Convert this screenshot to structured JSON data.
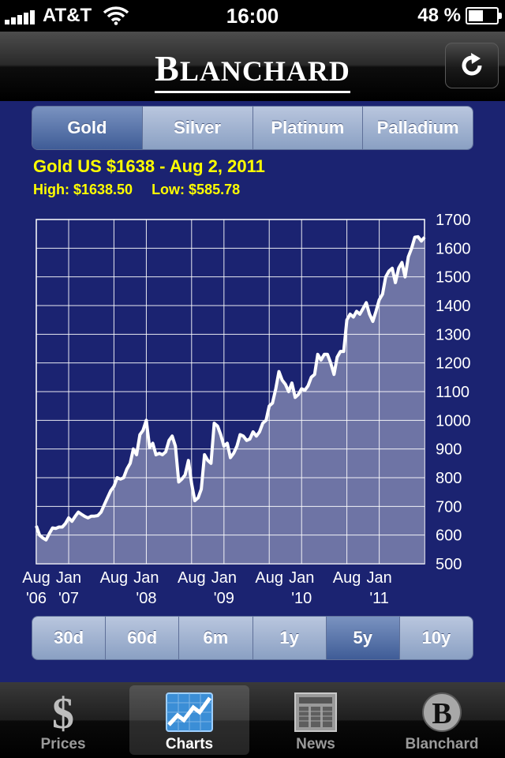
{
  "status_bar": {
    "carrier": "AT&T",
    "time": "16:00",
    "battery": "48 %",
    "battery_level": 0.48
  },
  "header": {
    "brand_initial": "B",
    "brand_rest": "LANCHARD"
  },
  "metal_tabs": [
    "Gold",
    "Silver",
    "Platinum",
    "Palladium"
  ],
  "selected_metal": "Gold",
  "quote": {
    "headline": "Gold US $1638 - Aug 2, 2011",
    "high": "High: $1638.50",
    "low": "Low: $585.78"
  },
  "range_tabs": [
    "30d",
    "60d",
    "6m",
    "1y",
    "5y",
    "10y"
  ],
  "selected_range": "5y",
  "tabbar": [
    {
      "label": "Prices",
      "icon": "dollar-icon"
    },
    {
      "label": "Charts",
      "icon": "chart-icon"
    },
    {
      "label": "News",
      "icon": "newspaper-icon"
    },
    {
      "label": "Blanchard",
      "icon": "blanchard-b-icon"
    }
  ],
  "selected_tab": "Charts",
  "colors": {
    "background": "#1b2371",
    "accent_text": "#ffff00",
    "area_fill": "#7d82ae",
    "line": "#ffffff"
  },
  "chart_data": {
    "type": "area",
    "title": "",
    "xlabel": "",
    "ylabel": "",
    "ylim": [
      500,
      1700
    ],
    "yticks": [
      500,
      600,
      700,
      800,
      900,
      1000,
      1100,
      1200,
      1300,
      1400,
      1500,
      1600,
      1700
    ],
    "y_axis_side": "right",
    "grid": true,
    "x_ticks": [
      {
        "x": 2006.583,
        "line1": "Aug",
        "line2": "'06"
      },
      {
        "x": 2007.0,
        "line1": "Jan",
        "line2": "'07"
      },
      {
        "x": 2007.583,
        "line1": "Aug",
        "line2": ""
      },
      {
        "x": 2008.0,
        "line1": "Jan",
        "line2": "'08"
      },
      {
        "x": 2008.583,
        "line1": "Aug",
        "line2": ""
      },
      {
        "x": 2009.0,
        "line1": "Jan",
        "line2": "'09"
      },
      {
        "x": 2009.583,
        "line1": "Aug",
        "line2": ""
      },
      {
        "x": 2010.0,
        "line1": "Jan",
        "line2": "'10"
      },
      {
        "x": 2010.583,
        "line1": "Aug",
        "line2": ""
      },
      {
        "x": 2011.0,
        "line1": "Jan",
        "line2": "'11"
      }
    ],
    "xlim": [
      2006.583,
      2011.583
    ],
    "series": [
      {
        "x": [
          2006.583,
          2006.625,
          2006.667,
          2006.708,
          2006.75,
          2006.792,
          2006.833,
          2006.875,
          2006.917,
          2006.958,
          2007.0,
          2007.042,
          2007.083,
          2007.125,
          2007.167,
          2007.208,
          2007.25,
          2007.292,
          2007.333,
          2007.375,
          2007.417,
          2007.458,
          2007.5,
          2007.542,
          2007.583,
          2007.625,
          2007.667,
          2007.708,
          2007.75,
          2007.792,
          2007.833,
          2007.875,
          2007.917,
          2007.958,
          2008.0,
          2008.042,
          2008.083,
          2008.125,
          2008.167,
          2008.208,
          2008.25,
          2008.292,
          2008.333,
          2008.375,
          2008.417,
          2008.458,
          2008.5,
          2008.542,
          2008.583,
          2008.625,
          2008.667,
          2008.708,
          2008.75,
          2008.792,
          2008.833,
          2008.875,
          2008.917,
          2008.958,
          2009.0,
          2009.042,
          2009.083,
          2009.125,
          2009.167,
          2009.208,
          2009.25,
          2009.292,
          2009.333,
          2009.375,
          2009.417,
          2009.458,
          2009.5,
          2009.542,
          2009.583,
          2009.625,
          2009.667,
          2009.708,
          2009.75,
          2009.792,
          2009.833,
          2009.875,
          2009.917,
          2009.958,
          2010.0,
          2010.042,
          2010.083,
          2010.125,
          2010.167,
          2010.208,
          2010.25,
          2010.292,
          2010.333,
          2010.375,
          2010.417,
          2010.458,
          2010.5,
          2010.542,
          2010.583,
          2010.625,
          2010.667,
          2010.708,
          2010.75,
          2010.792,
          2010.833,
          2010.875,
          2010.917,
          2010.958,
          2011.0,
          2011.042,
          2011.083,
          2011.125,
          2011.167,
          2011.208,
          2011.25,
          2011.292,
          2011.333,
          2011.375,
          2011.417,
          2011.458,
          2011.5,
          2011.542,
          2011.583
        ],
        "values": [
          632,
          600,
          590,
          583,
          605,
          625,
          623,
          628,
          628,
          640,
          660,
          648,
          665,
          680,
          672,
          665,
          660,
          666,
          666,
          668,
          680,
          705,
          730,
          755,
          770,
          800,
          795,
          800,
          830,
          850,
          900,
          880,
          950,
          965,
          1000,
          905,
          920,
          880,
          885,
          880,
          890,
          930,
          945,
          910,
          785,
          795,
          810,
          860,
          780,
          720,
          730,
          760,
          880,
          860,
          850,
          990,
          980,
          950,
          910,
          920,
          870,
          885,
          910,
          950,
          945,
          930,
          935,
          960,
          945,
          960,
          990,
          1000,
          1050,
          1060,
          1110,
          1170,
          1140,
          1125,
          1100,
          1130,
          1080,
          1090,
          1110,
          1105,
          1120,
          1150,
          1160,
          1230,
          1210,
          1230,
          1230,
          1200,
          1160,
          1220,
          1240,
          1240,
          1350,
          1370,
          1360,
          1380,
          1370,
          1390,
          1410,
          1370,
          1345,
          1380,
          1420,
          1440,
          1500,
          1520,
          1530,
          1480,
          1530,
          1550,
          1500,
          1570,
          1600,
          1638,
          1640,
          1625,
          1638
        ]
      }
    ]
  }
}
